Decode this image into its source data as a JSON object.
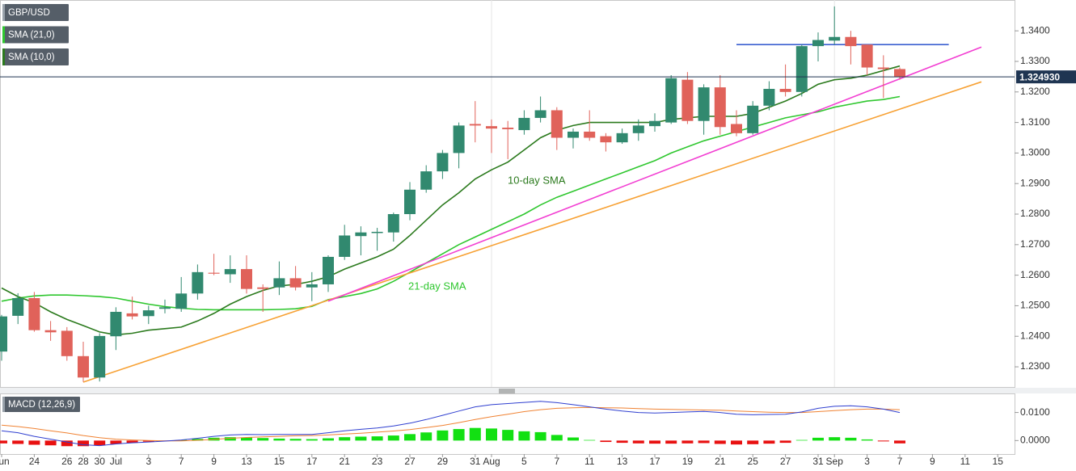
{
  "chart_data": [
    {
      "type": "candlestick",
      "categories": [
        "Jun",
        null,
        "24",
        null,
        "26",
        "28",
        "30",
        "Jul",
        null,
        "3",
        null,
        "7",
        null,
        "9",
        null,
        "13",
        null,
        "15",
        null,
        "17",
        null,
        "21",
        null,
        "23",
        null,
        "27",
        null,
        "29",
        null,
        "31",
        "Aug",
        null,
        "5",
        null,
        "7",
        null,
        "11",
        null,
        "13",
        null,
        "17",
        null,
        "19",
        null,
        "21",
        null,
        "25",
        null,
        "27",
        null,
        "31",
        "Sep",
        null,
        "3",
        null,
        "7",
        null,
        "9",
        null,
        "11",
        null,
        "15"
      ],
      "series": [
        {
          "name": "GBP/USD",
          "up_color": "#31896f",
          "down_color": "#e0625a",
          "open": [
            1.235,
            1.2467,
            1.2525,
            1.242,
            1.2418,
            1.2335,
            1.2265,
            1.24,
            1.2475,
            1.2466,
            1.249,
            1.249,
            1.254,
            1.2608,
            1.2603,
            1.262,
            1.256,
            1.256,
            1.259,
            1.256,
            1.257,
            1.266,
            1.2728,
            1.2738,
            1.274,
            1.28,
            1.288,
            1.294,
            1.3,
            1.3095,
            1.3088,
            1.3083,
            1.3075,
            1.3115,
            1.314,
            1.305,
            1.307,
            1.3055,
            1.3035,
            1.3065,
            1.3088,
            1.31,
            1.324,
            1.3105,
            1.3215,
            1.3095,
            1.3065,
            1.3155,
            1.321,
            1.32,
            1.335,
            1.3368,
            1.338,
            1.3355,
            1.328,
            1.3275,
            null,
            null,
            null,
            null,
            null,
            null
          ],
          "high": [
            1.247,
            1.2541,
            1.2545,
            1.245,
            1.243,
            1.2382,
            1.241,
            1.2495,
            1.253,
            1.25,
            1.252,
            1.2594,
            1.2635,
            1.267,
            1.2665,
            1.2665,
            1.257,
            1.2645,
            1.263,
            1.261,
            1.2665,
            1.2765,
            1.276,
            1.2755,
            1.2805,
            1.2905,
            1.296,
            1.301,
            1.31,
            1.317,
            1.311,
            1.3105,
            1.314,
            1.3185,
            1.315,
            1.308,
            1.314,
            1.3065,
            1.308,
            1.311,
            1.313,
            1.3255,
            1.3265,
            1.3225,
            1.3255,
            1.314,
            1.317,
            1.3235,
            1.329,
            1.3355,
            1.3395,
            1.348,
            1.34,
            1.3355,
            1.332,
            1.328,
            null,
            null,
            null,
            null,
            null,
            null
          ],
          "low": [
            1.232,
            1.244,
            1.2415,
            1.2385,
            1.232,
            1.2251,
            1.2252,
            1.2355,
            1.2455,
            1.244,
            1.2475,
            1.248,
            1.252,
            1.26,
            1.2575,
            1.254,
            1.248,
            1.2535,
            1.255,
            1.2515,
            1.2545,
            1.265,
            1.2665,
            1.268,
            1.271,
            1.278,
            1.287,
            1.2915,
            1.295,
            1.3035,
            1.3,
            1.298,
            1.306,
            1.31,
            1.301,
            1.3015,
            1.304,
            1.3005,
            1.303,
            1.304,
            1.307,
            1.3095,
            1.3095,
            1.306,
            1.306,
            1.3055,
            1.306,
            1.314,
            1.3185,
            1.3185,
            1.33,
            1.3355,
            1.329,
            1.3255,
            1.318,
            1.324,
            null,
            null,
            null,
            null,
            null,
            null
          ],
          "close": [
            1.2465,
            1.2525,
            1.242,
            1.2413,
            1.2335,
            1.2265,
            1.2401,
            1.248,
            1.2465,
            1.2485,
            1.2495,
            1.254,
            1.261,
            1.2605,
            1.262,
            1.2555,
            1.2555,
            1.259,
            1.256,
            1.257,
            1.266,
            1.273,
            1.274,
            1.2742,
            1.28,
            1.288,
            1.294,
            1.3,
            1.309,
            1.309,
            1.308,
            1.3078,
            1.3115,
            1.314,
            1.305,
            1.307,
            1.305,
            1.3035,
            1.3065,
            1.309,
            1.3105,
            1.3245,
            1.3105,
            1.3215,
            1.3085,
            1.3065,
            1.3155,
            1.321,
            1.32,
            1.335,
            1.337,
            1.338,
            1.335,
            1.328,
            1.3275,
            1.32493,
            null,
            null,
            null,
            null,
            null,
            null
          ]
        },
        {
          "name": "SMA (21,0)",
          "color": "#2fc72f",
          "values": [
            1.2515,
            1.2525,
            1.2532,
            1.2535,
            1.2535,
            1.2533,
            1.253,
            1.2525,
            1.2515,
            1.2505,
            1.2497,
            1.2492,
            1.2488,
            1.2487,
            1.2487,
            1.2487,
            1.2487,
            1.2488,
            1.249,
            1.2498,
            1.252,
            1.253,
            1.254,
            1.2555,
            1.258,
            1.261,
            1.264,
            1.267,
            1.27,
            1.2725,
            1.275,
            1.2775,
            1.28,
            1.283,
            1.2855,
            1.2875,
            1.2895,
            1.2915,
            1.2935,
            1.2955,
            1.2975,
            1.3,
            1.302,
            1.304,
            1.3055,
            1.307,
            1.3085,
            1.31,
            1.3115,
            1.3125,
            1.3135,
            1.315,
            1.316,
            1.317,
            1.3175,
            1.3185,
            null,
            null,
            null,
            null,
            null,
            null
          ]
        },
        {
          "name": "SMA (10,0)",
          "color": "#2b7a1d",
          "values": [
            1.2558,
            1.253,
            1.251,
            1.248,
            1.2455,
            1.2435,
            1.2414,
            1.2405,
            1.241,
            1.242,
            1.2425,
            1.243,
            1.245,
            1.2475,
            1.2505,
            1.253,
            1.255,
            1.2565,
            1.257,
            1.258,
            1.2595,
            1.262,
            1.264,
            1.266,
            1.2685,
            1.273,
            1.278,
            1.283,
            1.287,
            1.2915,
            1.2945,
            1.297,
            1.301,
            1.305,
            1.3075,
            1.309,
            1.31,
            1.31,
            1.31,
            1.31,
            1.31,
            1.311,
            1.3115,
            1.312,
            1.312,
            1.312,
            1.313,
            1.315,
            1.317,
            1.3195,
            1.3225,
            1.324,
            1.3245,
            1.3255,
            1.327,
            1.3285,
            null,
            null,
            null,
            null,
            null,
            null
          ]
        }
      ],
      "annotations": [
        {
          "text": "10-day SMA",
          "color": "#2b7a1d"
        },
        {
          "text": "21-day SMA",
          "color": "#2fc72f"
        }
      ],
      "lines": [
        {
          "color": "#f7a134",
          "x": [
            5,
            60
          ],
          "y": [
            1.225,
            1.3233
          ]
        },
        {
          "color": "#f23fd2",
          "x": [
            20,
            60
          ],
          "y": [
            1.2515,
            1.3347
          ]
        },
        {
          "color": "#3b5fd0",
          "x": [
            45,
            58
          ],
          "y": [
            1.3355,
            1.3355
          ]
        }
      ],
      "last_price": {
        "value": 1.32493,
        "label": "1.324930"
      },
      "ylim": [
        1.2234,
        1.3501
      ],
      "yticks": [
        {
          "value": 1.23,
          "label": "1.2300"
        },
        {
          "value": 1.24,
          "label": "1.2400"
        },
        {
          "value": 1.25,
          "label": "1.2500"
        },
        {
          "value": 1.26,
          "label": "1.2600"
        },
        {
          "value": 1.27,
          "label": "1.2700"
        },
        {
          "value": 1.28,
          "label": "1.2800"
        },
        {
          "value": 1.29,
          "label": "1.2900"
        },
        {
          "value": 1.3,
          "label": "1.3000"
        },
        {
          "value": 1.31,
          "label": "1.3100"
        },
        {
          "value": 1.32,
          "label": "1.3200"
        },
        {
          "value": 1.33,
          "label": "1.3300"
        },
        {
          "value": 1.34,
          "label": "1.3400"
        }
      ]
    },
    {
      "type": "macd",
      "title": "MACD (12,26,9)",
      "macd": {
        "color": "#2f3fd0",
        "values": [
          0.0035,
          0.0028,
          0.0015,
          0.0005,
          -0.0005,
          -0.0015,
          -0.0018,
          -0.0012,
          -0.0008,
          -0.0005,
          -0.0002,
          0.0002,
          0.0008,
          0.0015,
          0.002,
          0.0022,
          0.0021,
          0.0022,
          0.0022,
          0.0022,
          0.0028,
          0.0035,
          0.004,
          0.0045,
          0.0052,
          0.0062,
          0.0075,
          0.009,
          0.0105,
          0.012,
          0.0128,
          0.0132,
          0.0136,
          0.014,
          0.0135,
          0.0128,
          0.012,
          0.0112,
          0.0105,
          0.01,
          0.0098,
          0.01,
          0.0102,
          0.0104,
          0.01,
          0.0094,
          0.0092,
          0.0093,
          0.0094,
          0.0102,
          0.0115,
          0.0122,
          0.0124,
          0.012,
          0.0112,
          0.01,
          null,
          null,
          null,
          null,
          null,
          null
        ]
      },
      "signal": {
        "color": "#f08232",
        "values": [
          0.0055,
          0.005,
          0.0043,
          0.0035,
          0.0027,
          0.0018,
          0.001,
          0.0005,
          0.0002,
          0,
          -0.0001,
          -0.0001,
          0.0001,
          0.0004,
          0.0008,
          0.0011,
          0.0013,
          0.0015,
          0.0017,
          0.0018,
          0.002,
          0.0023,
          0.0026,
          0.003,
          0.0034,
          0.0039,
          0.0046,
          0.0054,
          0.0064,
          0.0075,
          0.0085,
          0.0094,
          0.0103,
          0.011,
          0.0115,
          0.0117,
          0.0118,
          0.0117,
          0.0116,
          0.0114,
          0.0112,
          0.0111,
          0.011,
          0.0109,
          0.0108,
          0.0105,
          0.0103,
          0.0101,
          0.01,
          0.01,
          0.0103,
          0.0107,
          0.011,
          0.0112,
          0.0112,
          0.011,
          null,
          null,
          null,
          null,
          null,
          null
        ]
      },
      "histogram": {
        "up_color": "#12e012",
        "down_color": "#e81010",
        "values": [
          -0.001,
          -0.0012,
          -0.0015,
          -0.0017,
          -0.002,
          -0.002,
          -0.0017,
          -0.0012,
          -0.0008,
          -0.0004,
          -0.0002,
          0.0002,
          0.0006,
          0.001,
          0.0012,
          0.0011,
          0.0009,
          0.0007,
          0.0006,
          0.0005,
          0.0008,
          0.0012,
          0.0014,
          0.0015,
          0.0018,
          0.0023,
          0.0029,
          0.0036,
          0.0041,
          0.0045,
          0.0043,
          0.0038,
          0.0033,
          0.003,
          0.002,
          0.0011,
          0.0002,
          -0.0005,
          -0.0008,
          -0.001,
          -0.0011,
          -0.0011,
          -0.001,
          -0.0009,
          -0.0012,
          -0.0014,
          -0.0013,
          -0.0011,
          -0.0008,
          0.0002,
          0.001,
          0.0012,
          0.001,
          0.0004,
          -0.0003,
          -0.001,
          null,
          null,
          null,
          null,
          null,
          null
        ]
      },
      "ylim": [
        -0.0048,
        0.0165
      ],
      "yticks": [
        {
          "value": 0.01,
          "label": "0.0100"
        },
        {
          "value": 0,
          "label": "0.0000"
        }
      ]
    }
  ]
}
